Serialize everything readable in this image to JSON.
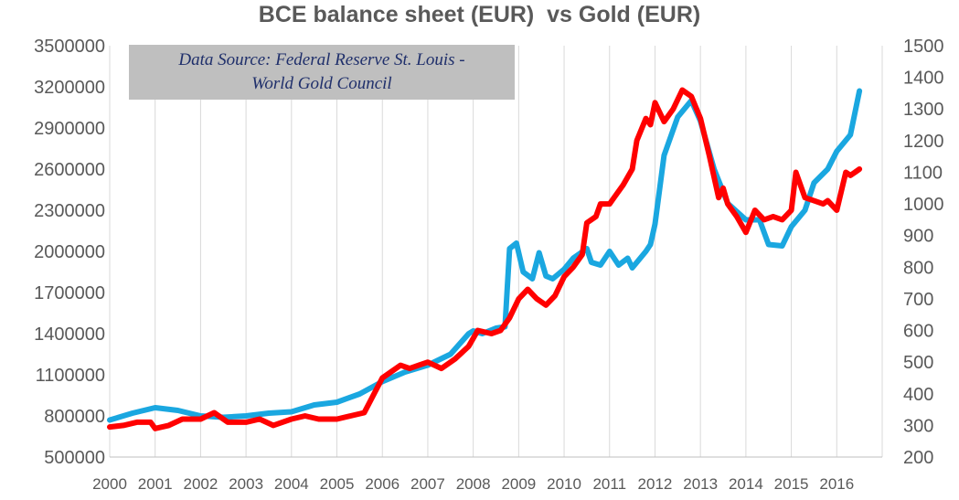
{
  "chart_data": {
    "type": "line",
    "title": "BCE balance sheet (EUR)  vs Gold (EUR)",
    "annotation": [
      "Data Source: Federal Reserve St. Louis -",
      "World Gold Council"
    ],
    "x_ticks": [
      "2000",
      "2001",
      "2002",
      "2003",
      "2004",
      "2005",
      "2006",
      "2007",
      "2008",
      "2009",
      "2010",
      "2011",
      "2012",
      "2013",
      "2014",
      "2015",
      "2016"
    ],
    "xlim": [
      2000,
      2017
    ],
    "y_left": {
      "ticks": [
        "500000",
        "800000",
        "1100000",
        "1400000",
        "1700000",
        "2000000",
        "2300000",
        "2600000",
        "2900000",
        "3200000",
        "3500000"
      ],
      "lim": [
        500000,
        3500000
      ]
    },
    "y_right": {
      "ticks": [
        "200",
        "300",
        "400",
        "500",
        "600",
        "700",
        "800",
        "900",
        "1000",
        "1100",
        "1200",
        "1300",
        "1400",
        "1500"
      ],
      "lim": [
        200,
        1500
      ]
    },
    "grid": "vertical",
    "series": [
      {
        "color": "#1aa7e0",
        "axis": "left",
        "x": [
          2000,
          2000.5,
          2001,
          2001.5,
          2002,
          2002.5,
          2003,
          2003.5,
          2004,
          2004.5,
          2005,
          2005.5,
          2006,
          2006.5,
          2007,
          2007.5,
          2007.9,
          2008,
          2008.2,
          2008.5,
          2008.7,
          2008.8,
          2008.95,
          2009.1,
          2009.3,
          2009.45,
          2009.6,
          2009.75,
          2010,
          2010.2,
          2010.5,
          2010.6,
          2010.8,
          2011,
          2011.2,
          2011.4,
          2011.5,
          2011.6,
          2011.8,
          2011.9,
          2012,
          2012.2,
          2012.5,
          2012.8,
          2013,
          2013.3,
          2013.6,
          2014,
          2014.3,
          2014.5,
          2014.8,
          2015,
          2015.3,
          2015.5,
          2015.8,
          2016,
          2016.3,
          2016.5
        ],
        "values": [
          770000,
          820000,
          860000,
          840000,
          800000,
          790000,
          800000,
          820000,
          830000,
          880000,
          900000,
          960000,
          1050000,
          1120000,
          1170000,
          1250000,
          1400000,
          1420000,
          1400000,
          1440000,
          1450000,
          2020000,
          2060000,
          1850000,
          1800000,
          1990000,
          1820000,
          1800000,
          1870000,
          1950000,
          2020000,
          1920000,
          1900000,
          2000000,
          1900000,
          1950000,
          1880000,
          1920000,
          2000000,
          2050000,
          2200000,
          2700000,
          2980000,
          3100000,
          2950000,
          2600000,
          2350000,
          2230000,
          2230000,
          2050000,
          2040000,
          2180000,
          2300000,
          2500000,
          2600000,
          2730000,
          2850000,
          3170000
        ]
      },
      {
        "color": "#ff0000",
        "axis": "right",
        "x": [
          2000,
          2000.3,
          2000.6,
          2000.9,
          2001,
          2001.3,
          2001.6,
          2002,
          2002.3,
          2002.6,
          2003,
          2003.3,
          2003.6,
          2004,
          2004.3,
          2004.6,
          2005,
          2005.3,
          2005.6,
          2006,
          2006.2,
          2006.4,
          2006.6,
          2006.8,
          2007,
          2007.3,
          2007.6,
          2007.9,
          2008.1,
          2008.4,
          2008.6,
          2008.8,
          2009,
          2009.2,
          2009.4,
          2009.6,
          2009.8,
          2010,
          2010.2,
          2010.4,
          2010.5,
          2010.7,
          2010.8,
          2011,
          2011.1,
          2011.3,
          2011.5,
          2011.6,
          2011.8,
          2011.9,
          2012,
          2012.2,
          2012.4,
          2012.6,
          2012.8,
          2013,
          2013.2,
          2013.4,
          2013.5,
          2013.6,
          2013.8,
          2014,
          2014.2,
          2014.4,
          2014.6,
          2014.8,
          2015,
          2015.1,
          2015.3,
          2015.5,
          2015.7,
          2015.8,
          2016,
          2016.2,
          2016.3,
          2016.4,
          2016.5
        ],
        "values": [
          295,
          300,
          310,
          310,
          290,
          300,
          320,
          320,
          340,
          310,
          310,
          320,
          300,
          320,
          330,
          320,
          320,
          330,
          340,
          450,
          470,
          490,
          480,
          490,
          500,
          480,
          510,
          550,
          600,
          590,
          600,
          640,
          700,
          730,
          700,
          680,
          710,
          770,
          800,
          840,
          940,
          960,
          1000,
          1000,
          1020,
          1060,
          1110,
          1200,
          1270,
          1250,
          1320,
          1260,
          1300,
          1360,
          1340,
          1270,
          1150,
          1020,
          1050,
          1000,
          960,
          910,
          980,
          950,
          960,
          950,
          980,
          1100,
          1020,
          1010,
          1000,
          1010,
          980,
          1100,
          1090,
          1100,
          1110
        ]
      }
    ]
  }
}
